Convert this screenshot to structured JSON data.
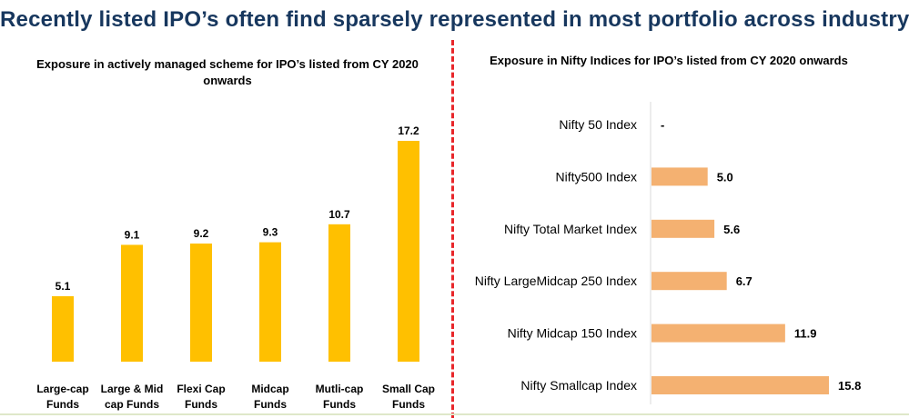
{
  "page": {
    "title": "Recently listed IPO’s often find sparsely represented in most portfolio across industry"
  },
  "colors": {
    "title": "#17375e",
    "left_bar": "#ffc000",
    "right_bar": "#f4b171",
    "divider": "#e8262a"
  },
  "chart_data": [
    {
      "type": "bar",
      "title": "Exposure in actively managed scheme for IPO’s listed from CY 2020 onwards",
      "categories": [
        [
          "Large-cap",
          "Funds"
        ],
        [
          "Large & Mid",
          "cap Funds"
        ],
        [
          "Flexi Cap",
          "Funds"
        ],
        [
          "Midcap",
          "Funds"
        ],
        [
          "Mutli-cap",
          "Funds"
        ],
        [
          "Small Cap",
          "Funds"
        ]
      ],
      "values": [
        5.1,
        9.1,
        9.2,
        9.3,
        10.7,
        17.2
      ],
      "value_labels": [
        "5.1",
        "9.1",
        "9.2",
        "9.3",
        "10.7",
        "17.2"
      ],
      "orientation": "vertical",
      "grid": false
    },
    {
      "type": "bar",
      "title": "Exposure in Nifty Indices for IPO’s listed from CY 2020 onwards",
      "categories": [
        "Nifty 50 Index",
        "Nifty500 Index",
        "Nifty Total Market Index",
        "Nifty LargeMidcap 250 Index",
        "Nifty Midcap 150 Index",
        "Nifty Smallcap Index"
      ],
      "values": [
        0,
        5.0,
        5.6,
        6.7,
        11.9,
        15.8
      ],
      "value_labels": [
        "-",
        "5.0",
        "5.6",
        "6.7",
        "11.9",
        "15.8"
      ],
      "orientation": "horizontal",
      "grid": false
    }
  ]
}
